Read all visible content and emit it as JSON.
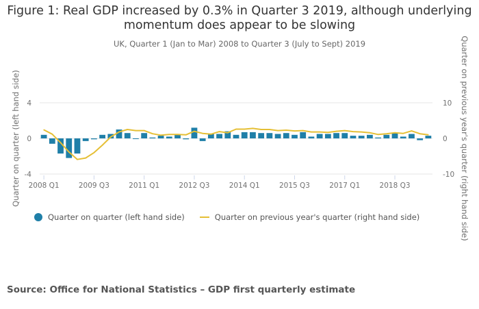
{
  "chart_data": {
    "type": "bar+line",
    "title": "Figure 1: Real GDP increased by 0.3% in Quarter 3 2019, although underlying momentum does appear to be slowing",
    "subtitle": "UK, Quarter 1 (Jan to Mar) 2008 to Quarter 3 (July to Sept) 2019",
    "ylabel_left": "Quarter on quarter (left hand side)",
    "ylabel_right": "Quarter on previous year's quarter (right hand side)",
    "xlabel": "",
    "ylim_left": [
      -4,
      4
    ],
    "ylim_right": [
      -10,
      10
    ],
    "yticks_left": [
      "4",
      "0",
      "-4"
    ],
    "yticks_right": [
      "10",
      "0",
      "-10"
    ],
    "xtick_labels": [
      "2008 Q1",
      "2009 Q3",
      "2011 Q1",
      "2012 Q3",
      "2014 Q1",
      "2015 Q3",
      "2017 Q1",
      "2018 Q3"
    ],
    "xtick_every": 6,
    "grid": true,
    "legend_position": "bottom-left",
    "categories": [
      "2008 Q1",
      "2008 Q2",
      "2008 Q3",
      "2008 Q4",
      "2009 Q1",
      "2009 Q2",
      "2009 Q3",
      "2009 Q4",
      "2010 Q1",
      "2010 Q2",
      "2010 Q3",
      "2010 Q4",
      "2011 Q1",
      "2011 Q2",
      "2011 Q3",
      "2011 Q4",
      "2012 Q1",
      "2012 Q2",
      "2012 Q3",
      "2012 Q4",
      "2013 Q1",
      "2013 Q2",
      "2013 Q3",
      "2013 Q4",
      "2014 Q1",
      "2014 Q2",
      "2014 Q3",
      "2014 Q4",
      "2015 Q1",
      "2015 Q2",
      "2015 Q3",
      "2015 Q4",
      "2016 Q1",
      "2016 Q2",
      "2016 Q3",
      "2016 Q4",
      "2017 Q1",
      "2017 Q2",
      "2017 Q3",
      "2017 Q4",
      "2018 Q1",
      "2018 Q2",
      "2018 Q3",
      "2018 Q4",
      "2019 Q1",
      "2019 Q2",
      "2019 Q3"
    ],
    "series": [
      {
        "name": "Quarter on quarter (left hand side)",
        "type": "bar",
        "axis": "left",
        "color": "#1f7fa8",
        "values": [
          0.4,
          -0.6,
          -1.7,
          -2.2,
          -1.7,
          -0.3,
          -0.1,
          0.4,
          0.5,
          1.0,
          0.6,
          0.0,
          0.6,
          0.1,
          0.3,
          0.2,
          0.5,
          -0.1,
          1.2,
          -0.3,
          0.5,
          0.5,
          0.8,
          0.4,
          0.7,
          0.7,
          0.6,
          0.6,
          0.5,
          0.6,
          0.4,
          0.7,
          0.2,
          0.5,
          0.5,
          0.6,
          0.6,
          0.3,
          0.3,
          0.4,
          0.1,
          0.4,
          0.6,
          0.2,
          0.5,
          -0.2,
          0.3
        ]
      },
      {
        "name": "Quarter on previous year's quarter (right hand side)",
        "type": "line",
        "axis": "right",
        "color": "#e5bf35",
        "values": [
          2.4,
          1.2,
          -1.2,
          -3.8,
          -5.9,
          -5.5,
          -4.0,
          -1.9,
          0.4,
          1.8,
          2.5,
          2.2,
          2.2,
          1.3,
          0.9,
          1.1,
          1.1,
          1.0,
          2.0,
          1.4,
          1.2,
          1.9,
          1.6,
          2.6,
          2.6,
          2.8,
          2.5,
          2.5,
          2.2,
          2.3,
          2.1,
          2.2,
          1.8,
          1.8,
          1.7,
          2.0,
          2.2,
          1.9,
          1.8,
          1.6,
          1.1,
          1.3,
          1.6,
          1.4,
          2.1,
          1.3,
          1.0
        ]
      }
    ]
  },
  "legend": {
    "bar_label": "Quarter on quarter (left hand side)",
    "line_label": "Quarter on previous year's quarter (right hand side)",
    "bar_color": "#1f7fa8",
    "line_color": "#e5bf35"
  },
  "source": "Source: Office for National Statistics – GDP first quarterly estimate"
}
